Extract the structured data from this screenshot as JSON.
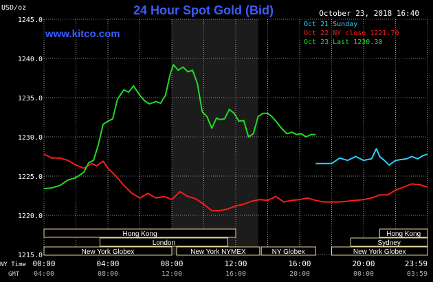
{
  "header": {
    "unit": "USD/oz",
    "title": "24 Hour Spot Gold (Bid)",
    "timestamp": "October 23, 2018 16:40",
    "source": "www.kitco.com"
  },
  "legend": [
    {
      "text": "Oct 21 Sunday",
      "color": "#33ccff"
    },
    {
      "text": "Oct 22 NY close 1221.70",
      "color": "#ff1a1a"
    },
    {
      "text": "Oct 23 Last 1230.30",
      "color": "#22dd22"
    }
  ],
  "axis_labels": {
    "row1_label": "NY Time",
    "row2_label": "GMT",
    "ny_ticks": [
      "00:00",
      "04:00",
      "08:00",
      "12:00",
      "16:00",
      "20:00",
      "23:59"
    ],
    "gmt_ticks": [
      "04:00",
      "08:00",
      "12:00",
      "16:00",
      "20:00",
      "00:00",
      "03:59"
    ]
  },
  "sessions": {
    "left": [
      {
        "label": "Hong Kong",
        "row": 0,
        "from": 0,
        "to": 12.0
      },
      {
        "label": "London",
        "row": 1,
        "from": 3.5,
        "to": 11.5
      },
      {
        "label": "New York Globex",
        "row": 2,
        "from": 0,
        "to": 8.0
      },
      {
        "label": "New York NYMEX",
        "row": 2,
        "from": 8.3,
        "to": 13.5
      },
      {
        "label": "NY Globex",
        "row": 2,
        "from": 13.6,
        "to": 17.0
      }
    ],
    "right": [
      {
        "label": "Hong Kong",
        "row": 0,
        "from": 21.0,
        "to": 24.0
      },
      {
        "label": "Sydney",
        "row": 1,
        "from": 19.2,
        "to": 24.0
      },
      {
        "label": "New York Globex",
        "row": 2,
        "from": 18.0,
        "to": 24.0
      }
    ]
  },
  "chart_data": {
    "type": "line",
    "title": "24 Hour Spot Gold (Bid)",
    "ylabel": "USD/oz",
    "xlabel": "NY Time",
    "ylim": [
      1215,
      1245
    ],
    "xlim": [
      0,
      24
    ],
    "yticks": [
      "1215.0",
      "1220.0",
      "1225.0",
      "1230.0",
      "1235.0",
      "1240.0",
      "1245.0"
    ],
    "shaded_region": [
      8.0,
      13.4
    ],
    "grid": true,
    "series": [
      {
        "name": "Oct 21 Sunday",
        "color": "#33ccff",
        "x": [
          17.0,
          18.0,
          18.5,
          19.0,
          19.5,
          20.0,
          20.5,
          20.8,
          21.0,
          21.3,
          21.6,
          22.0,
          22.3,
          22.7,
          23.0,
          23.4,
          23.7,
          24.0
        ],
        "y": [
          1226.6,
          1226.6,
          1227.3,
          1227.0,
          1227.5,
          1227.0,
          1227.2,
          1228.5,
          1227.5,
          1227.0,
          1226.4,
          1227.0,
          1227.1,
          1227.2,
          1227.5,
          1227.2,
          1227.6,
          1227.8
        ]
      },
      {
        "name": "Oct 22 NY close 1221.70",
        "color": "#ff1a1a",
        "x": [
          0,
          0.5,
          1.0,
          1.5,
          2.0,
          2.5,
          3.0,
          3.3,
          3.7,
          4.0,
          4.5,
          5.0,
          5.5,
          6.0,
          6.5,
          7.0,
          7.5,
          8.0,
          8.5,
          9.0,
          9.5,
          10.0,
          10.5,
          11.0,
          11.5,
          12.0,
          12.5,
          13.0,
          13.5,
          14.0,
          14.5,
          15.0,
          15.5,
          16.0,
          16.5,
          17.0,
          17.5,
          18.0,
          18.5,
          19.0,
          19.5,
          20.0,
          20.5,
          21.0,
          21.5,
          22.0,
          22.5,
          23.0,
          23.5,
          24.0
        ],
        "y": [
          1227.8,
          1227.3,
          1227.3,
          1227.0,
          1226.4,
          1226.0,
          1226.6,
          1226.3,
          1226.9,
          1226.0,
          1225.0,
          1223.8,
          1222.8,
          1222.2,
          1222.8,
          1222.2,
          1222.4,
          1222.0,
          1223.0,
          1222.4,
          1222.1,
          1221.4,
          1220.6,
          1220.6,
          1220.8,
          1221.2,
          1221.4,
          1221.8,
          1222.0,
          1221.9,
          1222.4,
          1221.7,
          1221.9,
          1222.0,
          1222.2,
          1221.9,
          1221.7,
          1221.7,
          1221.7,
          1221.8,
          1221.9,
          1222.0,
          1222.2,
          1222.6,
          1222.6,
          1223.2,
          1223.6,
          1224.0,
          1223.9,
          1223.6
        ]
      },
      {
        "name": "Oct 23 Last 1230.30",
        "color": "#22dd22",
        "x": [
          0,
          0.5,
          1.0,
          1.5,
          2.0,
          2.5,
          2.8,
          3.1,
          3.4,
          3.7,
          4.0,
          4.3,
          4.6,
          5.0,
          5.3,
          5.6,
          6.0,
          6.3,
          6.6,
          7.0,
          7.3,
          7.6,
          7.9,
          8.1,
          8.4,
          8.7,
          9.0,
          9.3,
          9.6,
          9.9,
          10.2,
          10.5,
          10.8,
          11.0,
          11.3,
          11.6,
          11.9,
          12.2,
          12.5,
          12.8,
          13.1,
          13.4,
          13.7,
          14.0,
          14.3,
          14.6,
          14.9,
          15.2,
          15.5,
          15.8,
          16.1,
          16.4,
          16.7,
          17.0
        ],
        "y": [
          1223.4,
          1223.5,
          1223.8,
          1224.5,
          1224.8,
          1225.5,
          1226.7,
          1227.0,
          1229.0,
          1231.6,
          1232.0,
          1232.3,
          1234.8,
          1236.0,
          1235.7,
          1236.5,
          1235.3,
          1234.6,
          1234.2,
          1234.5,
          1234.3,
          1235.3,
          1238.0,
          1239.2,
          1238.5,
          1238.9,
          1238.3,
          1238.5,
          1236.8,
          1233.2,
          1232.6,
          1231.1,
          1232.4,
          1232.2,
          1232.3,
          1233.5,
          1233.0,
          1232.0,
          1232.1,
          1230.0,
          1230.4,
          1232.6,
          1233.0,
          1233.0,
          1232.5,
          1231.8,
          1231.0,
          1230.4,
          1230.6,
          1230.3,
          1230.4,
          1230.0,
          1230.3,
          1230.3
        ]
      }
    ]
  }
}
